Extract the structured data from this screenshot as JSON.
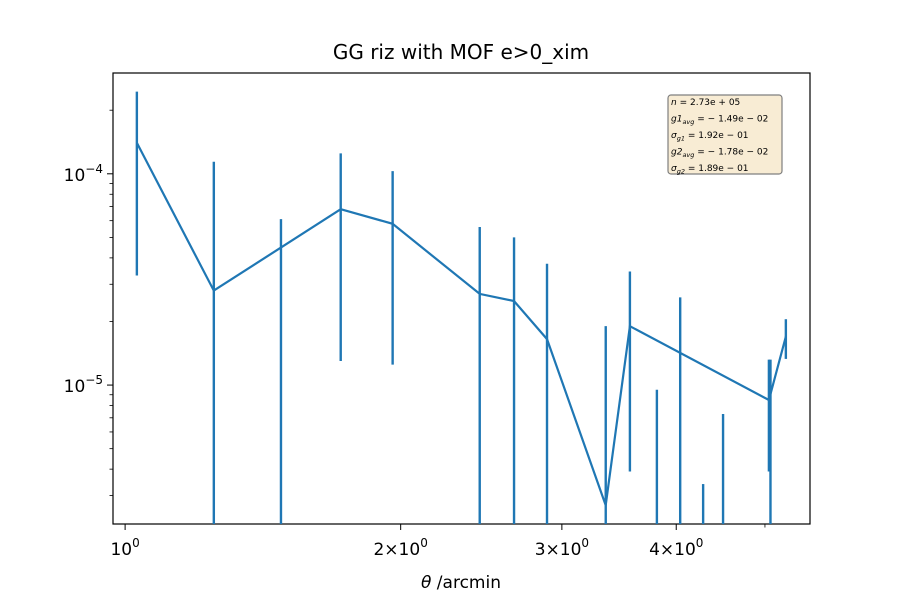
{
  "chart_data": {
    "type": "line",
    "title": "GG riz with MOF e>0_xim",
    "xlabel": "θ /arcmin",
    "ylabel": "",
    "x_scale": "log",
    "y_scale": "log",
    "xlim": [
      0.97,
      5.6
    ],
    "ylim": [
      2.2e-06,
      0.0003
    ],
    "grid": false,
    "color": "#1f77b4",
    "x_ticks": [
      {
        "value": 1,
        "base": "10",
        "exp": "0",
        "prefix": ""
      },
      {
        "value": 2,
        "base": "10",
        "exp": "0",
        "prefix": "2×"
      },
      {
        "value": 3,
        "base": "10",
        "exp": "0",
        "prefix": "3×"
      },
      {
        "value": 4,
        "base": "10",
        "exp": "0",
        "prefix": "4×"
      }
    ],
    "x_minor_ticks": [
      5
    ],
    "y_ticks": [
      {
        "value": 1e-05,
        "base": "10",
        "exp": "−5"
      },
      {
        "value": 0.0001,
        "base": "10",
        "exp": "−4"
      }
    ],
    "series": [
      {
        "x": [
          1.03,
          1.25,
          1.72,
          1.96,
          2.44,
          2.66,
          2.89,
          3.35,
          3.56,
          5.05,
          5.27
        ],
        "y": [
          0.00014,
          2.8e-05,
          6.8e-05,
          5.8e-05,
          2.7e-05,
          2.5e-05,
          1.65e-05,
          2.7e-06,
          1.9e-05,
          8.5e-06,
          1.7e-05
        ],
        "ylow": [
          3.3e-05,
          1e-07,
          1.3e-05,
          1.25e-05,
          1e-07,
          1e-07,
          1e-07,
          1e-07,
          3.9e-06,
          3.9e-06,
          1.33e-05
        ],
        "yhigh": [
          0.000245,
          0.000114,
          0.000125,
          0.000103,
          5.6e-05,
          5e-05,
          3.75e-05,
          1.9e-05,
          3.45e-05,
          1.32e-05,
          2.05e-05
        ]
      }
    ],
    "lone_errorbars": [
      {
        "x": 1.48,
        "yhigh": 6.1e-05
      },
      {
        "x": 3.81,
        "yhigh": 9.5e-06
      },
      {
        "x": 4.04,
        "yhigh": 2.6e-05
      },
      {
        "x": 4.28,
        "yhigh": 3.4e-06
      },
      {
        "x": 4.5,
        "yhigh": 7.3e-06
      },
      {
        "x": 5.07,
        "yhigh": 1.32e-05
      }
    ],
    "stats_box": {
      "placement": "top-right",
      "background": "#f8ecd4",
      "lines": [
        {
          "var": "n",
          "sub": "",
          "value": " = 2.73e + 05"
        },
        {
          "var": "g1",
          "sub": "avg",
          "value": " = − 1.49e − 02"
        },
        {
          "var": "σ",
          "sub": "g1",
          "value": " = 1.92e − 01"
        },
        {
          "var": "g2",
          "sub": "avg",
          "value": " = − 1.78e − 02"
        },
        {
          "var": "σ",
          "sub": "g2",
          "value": " = 1.89e − 01"
        }
      ]
    }
  }
}
